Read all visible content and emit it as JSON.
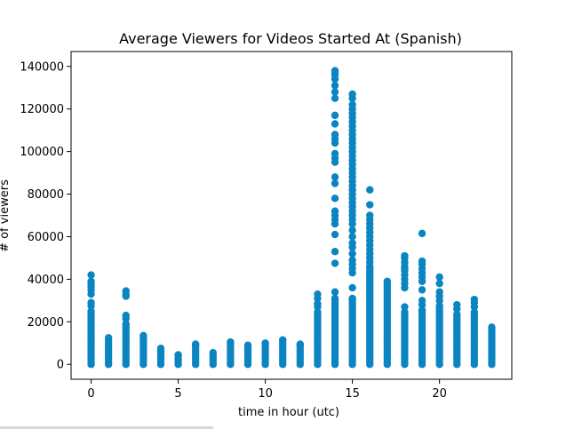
{
  "chart_data": {
    "type": "scatter",
    "title": "Average Viewers for Videos Started At (Spanish)",
    "xlabel": "time in hour (utc)",
    "ylabel": "# of viewers",
    "xlim": [
      -1.15,
      24.15
    ],
    "ylim": [
      -7000,
      147000
    ],
    "xticks": [
      0,
      5,
      10,
      15,
      20
    ],
    "yticks": [
      0,
      20000,
      40000,
      60000,
      80000,
      100000,
      120000,
      140000
    ],
    "grid": false,
    "marker_color": "#0a85c2",
    "series": [
      {
        "hours": [
          0,
          1,
          2,
          3,
          4,
          5,
          6,
          7,
          8,
          9,
          10,
          11,
          12,
          13,
          14,
          15,
          16,
          17,
          18,
          19,
          20,
          21,
          22,
          23
        ],
        "max_viewers": [
          42000,
          12500,
          34500,
          13500,
          7500,
          4500,
          9500,
          5500,
          10500,
          9000,
          10000,
          11500,
          9500,
          33000,
          138000,
          127000,
          82000,
          39000,
          51000,
          61500,
          41000,
          28000,
          30500,
          17500
        ],
        "outliers": [
          {
            "x": 0,
            "y": [
              42000,
              39000,
              38000,
              36500,
              35000,
              33000,
              29000,
              27500
            ]
          },
          {
            "x": 2,
            "y": [
              34500,
              33000,
              32000,
              23000,
              21500
            ]
          },
          {
            "x": 13,
            "y": [
              33000,
              31000,
              28500,
              27000
            ]
          },
          {
            "x": 14,
            "y": [
              138000,
              137000,
              136000,
              134000,
              131000,
              128000,
              125000,
              117000,
              113000,
              108000,
              106000,
              104000,
              99000,
              97000,
              95000,
              88000,
              85000,
              78000,
              72000,
              70000,
              68000,
              66000,
              61000,
              53000,
              47500,
              34000
            ]
          },
          {
            "x": 15,
            "y": [
              127000,
              125000,
              122000,
              120000,
              118000,
              116000,
              114000,
              112000,
              110000,
              108000,
              106000,
              104000,
              102000,
              100000,
              98000,
              96000,
              94000,
              92000,
              90000,
              88000,
              86000,
              84000,
              82000,
              80000,
              78000,
              76000,
              74000,
              72000,
              70000,
              68000,
              66000,
              63000,
              60000,
              57000,
              55000,
              52000,
              49000,
              47000,
              45000,
              43000,
              36000
            ]
          },
          {
            "x": 16,
            "y": [
              82000,
              75000,
              70000,
              68000,
              66000,
              64000,
              62000,
              60000,
              58000,
              56000,
              54000,
              52000,
              50000,
              48000
            ]
          },
          {
            "x": 18,
            "y": [
              51000,
              50000,
              48000,
              46000,
              45000,
              44000,
              42000,
              40000,
              38000,
              36000,
              27000
            ]
          },
          {
            "x": 19,
            "y": [
              61500,
              48500,
              47000,
              45000,
              43000,
              41000,
              39000,
              35000,
              30000,
              28000
            ]
          },
          {
            "x": 20,
            "y": [
              41000,
              38000,
              34000,
              32000,
              30000
            ]
          },
          {
            "x": 21,
            "y": [
              28000,
              26000
            ]
          },
          {
            "x": 22,
            "y": [
              30500,
              29000,
              27000
            ]
          }
        ]
      }
    ]
  }
}
